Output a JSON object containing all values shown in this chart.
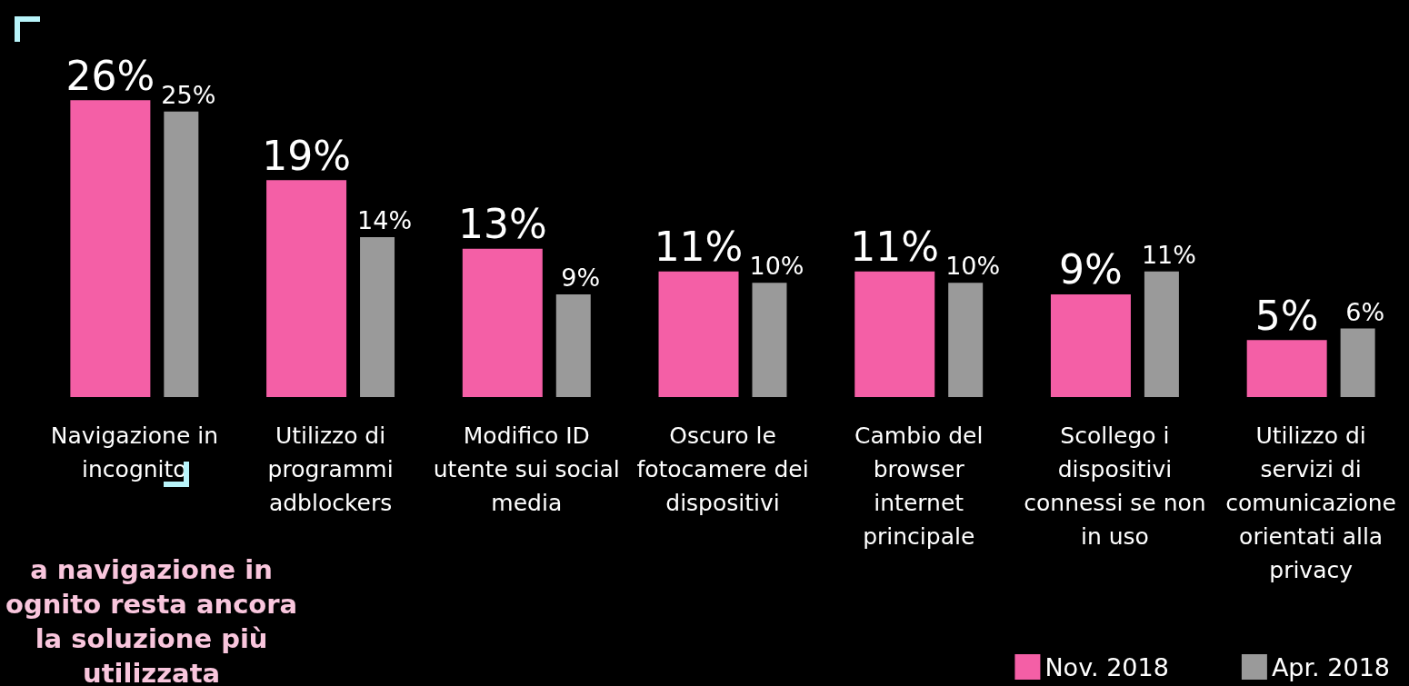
{
  "chart_data": {
    "type": "bar",
    "categories": [
      "Navigazione in\nincognito",
      "Utilizzo di\nprogrammi\nadblockers",
      "Modifico ID\nutente sui social\nmedia",
      "Oscuro le\nfotocamere dei\ndispositivi",
      "Cambio del\nbrowser\ninternet\nprincipale",
      "Scollego i\ndispositivi\nconnessi se non\nin uso",
      "Utilizzo di\nservizi di\ncomunicazione\norientati alla\nprivacy"
    ],
    "series": [
      {
        "name": "Nov. 2018",
        "color": "#f45fa6",
        "values": [
          26,
          19,
          13,
          11,
          11,
          9,
          5
        ],
        "value_labels": [
          "26%",
          "19%",
          "13%",
          "11%",
          "11%",
          "9%",
          "5%"
        ]
      },
      {
        "name": "Apr. 2018",
        "color": "#9a9a9a",
        "values": [
          25,
          14,
          9,
          10,
          10,
          11,
          6
        ],
        "value_labels": [
          "25%",
          "14%",
          "9%",
          "10%",
          "10%",
          "11%",
          "6%"
        ]
      }
    ],
    "legend": "bottom right",
    "grid": false,
    "annotations": [
      "a navigazione in\nognito resta ancora\nla soluzione più\nutilizzata"
    ]
  }
}
